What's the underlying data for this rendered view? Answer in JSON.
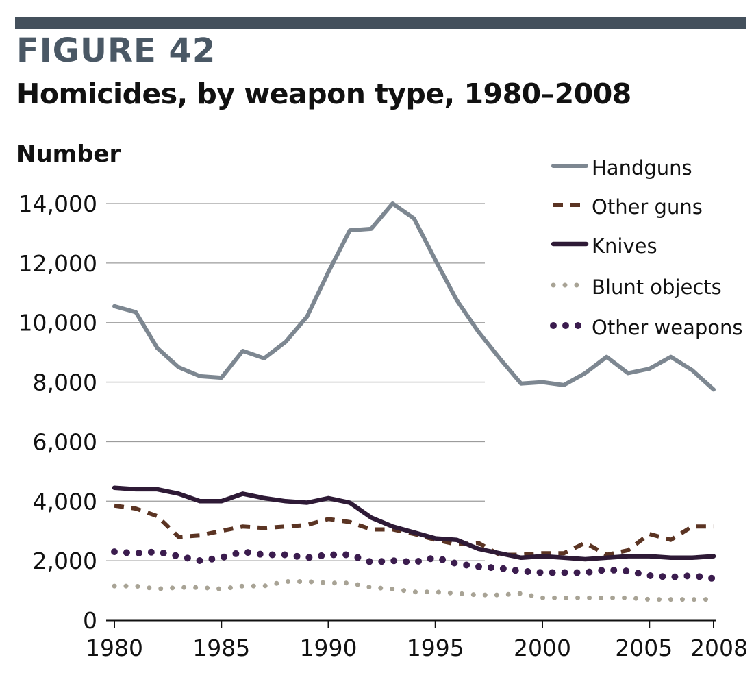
{
  "figure_label": "FIGURE 42",
  "chart_data": {
    "type": "line",
    "title": "Homicides, by weapon type, 1980–2008",
    "xlabel": "",
    "ylabel": "Number",
    "xlim": [
      1980,
      2008
    ],
    "ylim": [
      0,
      14000
    ],
    "grid": true,
    "legend_position": "top-right",
    "x": [
      1980,
      1981,
      1982,
      1983,
      1984,
      1985,
      1986,
      1987,
      1988,
      1989,
      1990,
      1991,
      1992,
      1993,
      1994,
      1995,
      1996,
      1997,
      1998,
      1999,
      2000,
      2001,
      2002,
      2003,
      2004,
      2005,
      2006,
      2007,
      2008
    ],
    "x_ticks": [
      1980,
      1985,
      1990,
      1995,
      2000,
      2005,
      2008
    ],
    "x_tick_labels": [
      "1980",
      "1985",
      "1990",
      "1995",
      "2000",
      "2005",
      "2008"
    ],
    "y_ticks": [
      0,
      2000,
      4000,
      6000,
      8000,
      10000,
      12000,
      14000
    ],
    "y_tick_labels": [
      "0",
      "2,000",
      "4,000",
      "6,000",
      "8,000",
      "10,000",
      "12,000",
      "14,000"
    ],
    "series": [
      {
        "name": "Handguns",
        "style": "solid",
        "color": "#7d8791",
        "values": [
          10550,
          10350,
          9150,
          8500,
          8200,
          8150,
          9050,
          8800,
          9350,
          10200,
          11700,
          13100,
          13150,
          14000,
          13500,
          12100,
          10750,
          9700,
          8800,
          7950,
          8000,
          7900,
          8300,
          8850,
          8300,
          8450,
          8850,
          8400,
          7750
        ]
      },
      {
        "name": "Other guns",
        "style": "dashed",
        "color": "#5b3423",
        "values": [
          3850,
          3750,
          3500,
          2800,
          2850,
          3000,
          3150,
          3100,
          3150,
          3200,
          3400,
          3300,
          3050,
          3050,
          2900,
          2700,
          2550,
          2600,
          2200,
          2200,
          2250,
          2250,
          2600,
          2200,
          2350,
          2900,
          2700,
          3150,
          3150
        ]
      },
      {
        "name": "Knives",
        "style": "solid-thick",
        "color": "#2e1a36",
        "values": [
          4450,
          4400,
          4400,
          4250,
          4000,
          4000,
          4250,
          4100,
          4000,
          3950,
          4100,
          3950,
          3450,
          3150,
          2950,
          2750,
          2700,
          2400,
          2250,
          2100,
          2150,
          2100,
          2050,
          2100,
          2150,
          2150,
          2100,
          2100,
          2150
        ]
      },
      {
        "name": "Blunt objects",
        "style": "dotted",
        "color": "#a8a395",
        "values": [
          1150,
          1150,
          1050,
          1100,
          1100,
          1050,
          1150,
          1150,
          1300,
          1300,
          1250,
          1250,
          1100,
          1050,
          950,
          950,
          900,
          850,
          850,
          900,
          750,
          750,
          750,
          750,
          750,
          700,
          700,
          700,
          700
        ]
      },
      {
        "name": "Other weapons",
        "style": "dotted-thick",
        "color": "#3b1c4e",
        "values": [
          2300,
          2250,
          2300,
          2150,
          2000,
          2100,
          2300,
          2200,
          2200,
          2100,
          2200,
          2200,
          1950,
          2000,
          1950,
          2100,
          1900,
          1800,
          1750,
          1650,
          1600,
          1600,
          1600,
          1700,
          1650,
          1500,
          1450,
          1500,
          1400
        ]
      }
    ]
  }
}
